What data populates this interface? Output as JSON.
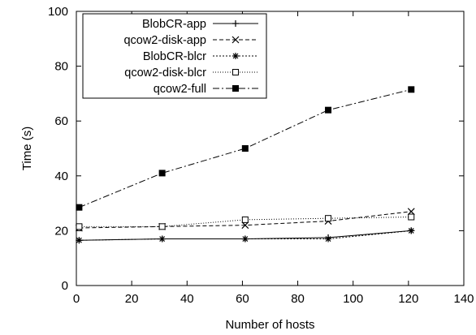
{
  "chart_data": {
    "type": "line",
    "title": "",
    "xlabel": "Number of hosts",
    "ylabel": "Time (s)",
    "xlim": [
      0,
      140
    ],
    "ylim": [
      0,
      100
    ],
    "xticks": [
      0,
      20,
      40,
      60,
      80,
      100,
      120,
      140
    ],
    "yticks": [
      0,
      20,
      40,
      60,
      80,
      100
    ],
    "grid": false,
    "legend_position": "top-left",
    "x": [
      1,
      31,
      61,
      91,
      121
    ],
    "series": [
      {
        "name": "BlobCR-app",
        "marker": "plus",
        "dash": "solid",
        "values": [
          16.5,
          17.0,
          17.0,
          17.5,
          20.0
        ]
      },
      {
        "name": "qcow2-disk-app",
        "marker": "x",
        "dash": "dashed",
        "values": [
          21.0,
          21.5,
          22.0,
          23.5,
          27.0
        ]
      },
      {
        "name": "BlobCR-blcr",
        "marker": "star",
        "dash": "dotted",
        "values": [
          16.5,
          17.0,
          17.0,
          17.0,
          20.0
        ]
      },
      {
        "name": "qcow2-disk-blcr",
        "marker": "open-square",
        "dash": "fine-dotted",
        "values": [
          21.5,
          21.5,
          24.0,
          24.5,
          25.0
        ]
      },
      {
        "name": "qcow2-full",
        "marker": "filled-square",
        "dash": "dash-dot",
        "values": [
          28.5,
          41.0,
          50.0,
          64.0,
          71.5
        ]
      }
    ]
  }
}
